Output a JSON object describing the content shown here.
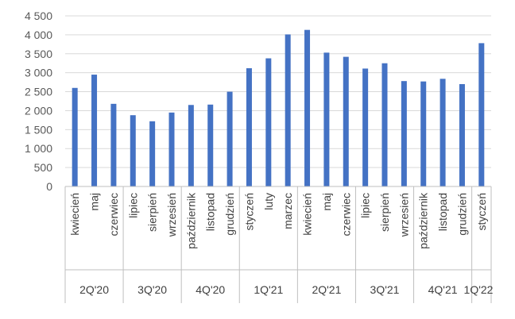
{
  "chart_data": {
    "type": "bar",
    "ylim": [
      0,
      4500
    ],
    "yticks": [
      0,
      500,
      1000,
      1500,
      2000,
      2500,
      3000,
      3500,
      4000,
      4500
    ],
    "ytick_labels": [
      "0",
      "500",
      "1 000",
      "1 500",
      "2 000",
      "2 500",
      "3 000",
      "3 500",
      "4 000",
      "4 500"
    ],
    "categories": [
      "kwiecień",
      "maj",
      "czerwiec",
      "lipiec",
      "sierpień",
      "wrzesień",
      "październik",
      "listopad",
      "grudzień",
      "styczeń",
      "luty",
      "marzec",
      "kwiecień",
      "maj",
      "czerwiec",
      "lipiec",
      "sierpień",
      "wrzesień",
      "październik",
      "listopad",
      "grudzień",
      "styczeń"
    ],
    "values": [
      2600,
      2950,
      2180,
      1880,
      1720,
      1950,
      2150,
      2160,
      2500,
      3120,
      3380,
      4010,
      4130,
      3530,
      3420,
      3110,
      3250,
      2780,
      2770,
      2840,
      2700,
      3780
    ],
    "quarters": [
      {
        "label": "2Q'20",
        "count": 3
      },
      {
        "label": "3Q'20",
        "count": 3
      },
      {
        "label": "4Q'20",
        "count": 3
      },
      {
        "label": "1Q'21",
        "count": 3
      },
      {
        "label": "2Q'21",
        "count": 3
      },
      {
        "label": "3Q'21",
        "count": 3
      },
      {
        "label": "4Q'21",
        "count": 3
      },
      {
        "label": "1Q'22",
        "count": 1
      }
    ],
    "grid": true,
    "legend": "none"
  },
  "colors": {
    "bar": "#4472C4",
    "grid": "#d9d9d9",
    "axis": "#bfbfbf",
    "text": "#404040"
  }
}
